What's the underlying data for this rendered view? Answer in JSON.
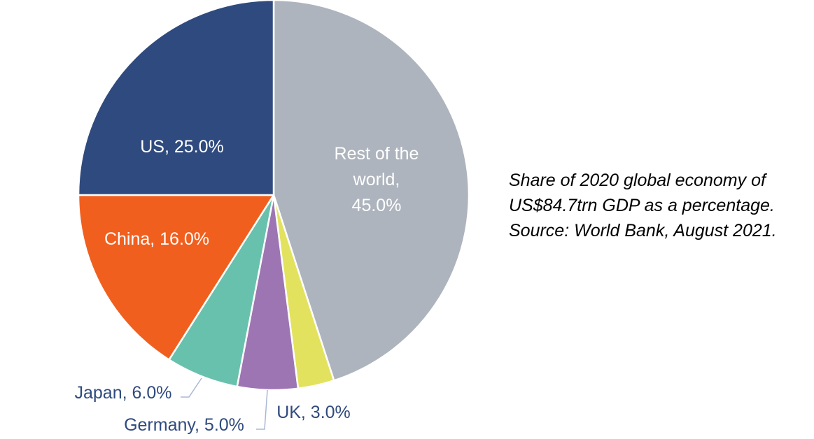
{
  "chart_data": {
    "type": "pie",
    "start_angle": "12 o'clock",
    "direction": "clockwise",
    "slices": [
      {
        "label": "Rest of the world",
        "value": 45.0,
        "data_label_lines": [
          "Rest of the",
          "world,",
          "45.0%"
        ],
        "color": "#adb4bd",
        "label_color": "#ffffff"
      },
      {
        "label": "UK",
        "value": 3.0,
        "data_label_lines": [
          "UK, 3.0%"
        ],
        "color": "#e2e25f",
        "label_color": "#2f4a7e"
      },
      {
        "label": "Germany",
        "value": 5.0,
        "data_label_lines": [
          "Germany, 5.0%"
        ],
        "color": "#9d75b3",
        "label_color": "#2f4a7e"
      },
      {
        "label": "Japan",
        "value": 6.0,
        "data_label_lines": [
          "Japan, 6.0%"
        ],
        "color": "#68c1ad",
        "label_color": "#2f4a7e"
      },
      {
        "label": "China",
        "value": 16.0,
        "data_label_lines": [
          "China, 16.0%"
        ],
        "color": "#f15f1e",
        "label_color": "#ffffff"
      },
      {
        "label": "US",
        "value": 25.0,
        "data_label_lines": [
          "US, 25.0%"
        ],
        "color": "#2f4a7e",
        "label_color": "#ffffff"
      }
    ],
    "leader_line_color": "#a9b8d6"
  },
  "note": {
    "lines": [
      "Share of 2020 global economy of",
      "US$84.7trn GDP as a percentage.",
      "Source: World Bank, August 2021."
    ]
  }
}
